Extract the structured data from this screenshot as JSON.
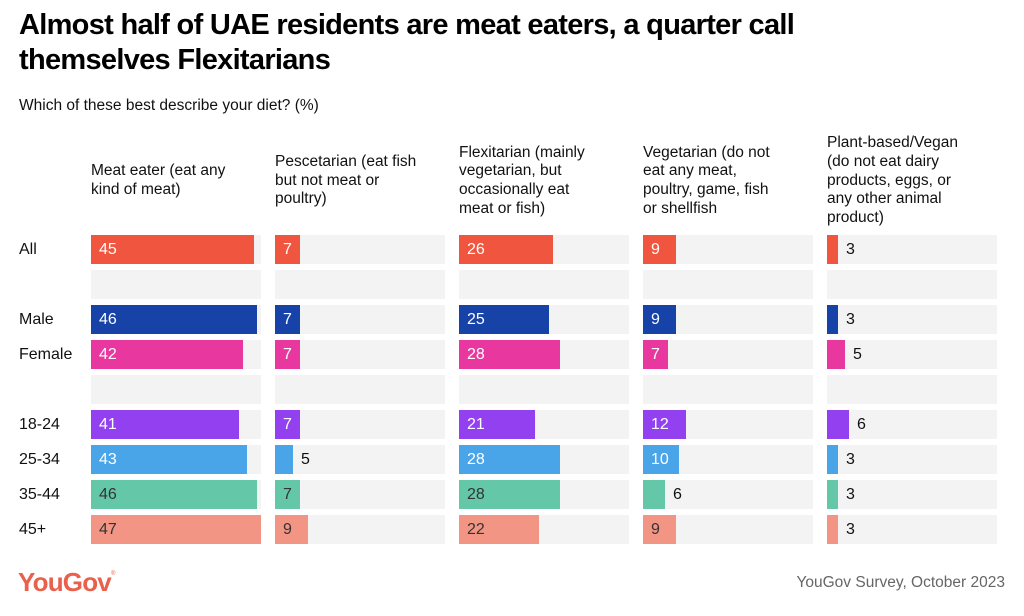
{
  "chart_data": {
    "type": "bar",
    "orientation": "horizontal",
    "layout": "small-multiples",
    "title": "Almost half of UAE residents are meat eaters, a quarter call\nthemselves Flexitarians",
    "subtitle": "Which of these best describe your diet? (%)",
    "xlim": [
      0,
      47
    ],
    "categories": [
      "Meat eater (eat any\nkind of meat)",
      "Pescetarian (eat fish\nbut not meat or\npoultry)",
      "Flexitarian (mainly\nvegetarian, but\noccasionally eat\nmeat or fish)",
      "Vegetarian (do not\neat any meat,\npoultry, game, fish\nor shellfish",
      "Plant-based/Vegan\n(do not eat dairy\nproducts, eggs, or\nany other animal\nproduct)"
    ],
    "series": [
      {
        "name": "All",
        "group": 0,
        "color": "#ef553f",
        "label_color": "#ffffff",
        "values": [
          45,
          7,
          26,
          9,
          3
        ]
      },
      {
        "name": "Male",
        "group": 1,
        "color": "#1742a8",
        "label_color": "#ffffff",
        "values": [
          46,
          7,
          25,
          9,
          3
        ]
      },
      {
        "name": "Female",
        "group": 1,
        "color": "#e838a0",
        "label_color": "#ffffff",
        "values": [
          42,
          7,
          28,
          7,
          5
        ]
      },
      {
        "name": "18-24",
        "group": 2,
        "color": "#9340f0",
        "label_color": "#ffffff",
        "values": [
          41,
          7,
          21,
          12,
          6
        ]
      },
      {
        "name": "25-34",
        "group": 2,
        "color": "#4aa4e8",
        "label_color": "#ffffff",
        "values": [
          43,
          5,
          28,
          10,
          3
        ]
      },
      {
        "name": "35-44",
        "group": 2,
        "color": "#64c8a8",
        "label_color": "#333333",
        "values": [
          46,
          7,
          28,
          6,
          3
        ]
      },
      {
        "name": "45+",
        "group": 2,
        "color": "#f29585",
        "label_color": "#333333",
        "values": [
          47,
          9,
          22,
          9,
          3
        ]
      }
    ],
    "outside_label_color": "#111111",
    "track_color": "#f3f3f3"
  },
  "footer": {
    "logo": "YouGov",
    "logo_mark": "®",
    "source": "YouGov Survey, October 2023"
  },
  "brand_color": "#e9604d"
}
